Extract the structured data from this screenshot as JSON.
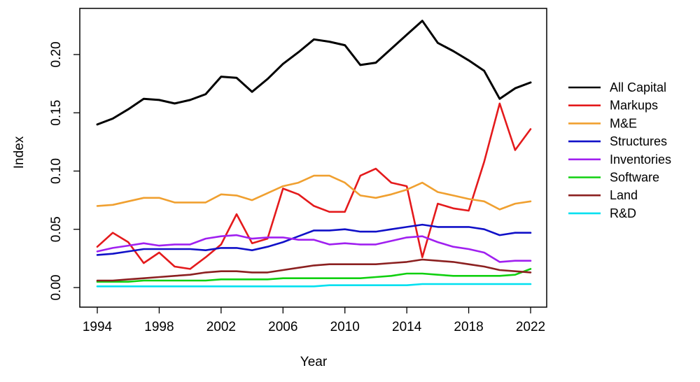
{
  "chart_data": {
    "type": "line",
    "xlabel": "Year",
    "ylabel": "Index",
    "xlim": [
      1994,
      2022
    ],
    "ylim": [
      0.0,
      0.23
    ],
    "x_ticks": [
      1994,
      1998,
      2002,
      2006,
      2010,
      2014,
      2018,
      2022
    ],
    "x_tick_labels": [
      "1994",
      "1998",
      "2002",
      "2006",
      "2010",
      "2014",
      "2018",
      "2022"
    ],
    "y_ticks": [
      0.0,
      0.05,
      0.1,
      0.15,
      0.2
    ],
    "y_tick_labels": [
      "0.00",
      "0.05",
      "0.10",
      "0.15",
      "0.20"
    ],
    "legend_position": "right",
    "grid": false,
    "x": [
      1994,
      1995,
      1996,
      1997,
      1998,
      1999,
      2000,
      2001,
      2002,
      2003,
      2004,
      2005,
      2006,
      2007,
      2008,
      2009,
      2010,
      2011,
      2012,
      2013,
      2014,
      2015,
      2016,
      2017,
      2018,
      2019,
      2020,
      2021,
      2022
    ],
    "series": [
      {
        "name": "All Capital",
        "color": "#000000",
        "values": [
          0.14,
          0.145,
          0.153,
          0.162,
          0.161,
          0.158,
          0.161,
          0.166,
          0.181,
          0.18,
          0.168,
          0.179,
          0.192,
          0.202,
          0.213,
          0.211,
          0.208,
          0.191,
          0.193,
          0.205,
          0.217,
          0.229,
          0.21,
          0.203,
          0.195,
          0.186,
          0.162,
          0.171,
          0.176
        ]
      },
      {
        "name": "Markups",
        "color": "#e41a1c",
        "values": [
          0.035,
          0.047,
          0.039,
          0.021,
          0.03,
          0.018,
          0.016,
          0.026,
          0.037,
          0.063,
          0.038,
          0.042,
          0.085,
          0.08,
          0.07,
          0.065,
          0.065,
          0.096,
          0.102,
          0.09,
          0.087,
          0.026,
          0.072,
          0.068,
          0.066,
          0.108,
          0.158,
          0.118,
          0.136
        ]
      },
      {
        "name": "M&E",
        "color": "#f0a030",
        "values": [
          0.07,
          0.071,
          0.074,
          0.077,
          0.077,
          0.073,
          0.073,
          0.073,
          0.08,
          0.079,
          0.075,
          0.081,
          0.087,
          0.09,
          0.096,
          0.096,
          0.09,
          0.079,
          0.077,
          0.08,
          0.084,
          0.09,
          0.082,
          0.079,
          0.076,
          0.074,
          0.067,
          0.072,
          0.074
        ]
      },
      {
        "name": "Structures",
        "color": "#1010c8",
        "values": [
          0.028,
          0.029,
          0.031,
          0.033,
          0.033,
          0.033,
          0.033,
          0.032,
          0.034,
          0.034,
          0.032,
          0.035,
          0.039,
          0.044,
          0.049,
          0.049,
          0.05,
          0.048,
          0.048,
          0.05,
          0.052,
          0.054,
          0.052,
          0.052,
          0.052,
          0.05,
          0.045,
          0.047,
          0.047
        ]
      },
      {
        "name": "Inventories",
        "color": "#a020f0",
        "values": [
          0.031,
          0.034,
          0.036,
          0.038,
          0.036,
          0.037,
          0.037,
          0.042,
          0.044,
          0.045,
          0.042,
          0.043,
          0.043,
          0.041,
          0.041,
          0.037,
          0.038,
          0.037,
          0.037,
          0.04,
          0.043,
          0.044,
          0.039,
          0.035,
          0.033,
          0.03,
          0.022,
          0.023,
          0.023
        ]
      },
      {
        "name": "Software",
        "color": "#10d010",
        "values": [
          0.005,
          0.005,
          0.005,
          0.006,
          0.006,
          0.006,
          0.006,
          0.006,
          0.007,
          0.007,
          0.007,
          0.007,
          0.008,
          0.008,
          0.008,
          0.008,
          0.008,
          0.008,
          0.009,
          0.01,
          0.012,
          0.012,
          0.011,
          0.01,
          0.01,
          0.01,
          0.01,
          0.011,
          0.016
        ]
      },
      {
        "name": "Land",
        "color": "#8b2020",
        "values": [
          0.006,
          0.006,
          0.007,
          0.008,
          0.009,
          0.01,
          0.011,
          0.013,
          0.014,
          0.014,
          0.013,
          0.013,
          0.015,
          0.017,
          0.019,
          0.02,
          0.02,
          0.02,
          0.02,
          0.021,
          0.022,
          0.024,
          0.023,
          0.022,
          0.02,
          0.018,
          0.015,
          0.014,
          0.013
        ]
      },
      {
        "name": "R&D",
        "color": "#00e0f0",
        "values": [
          0.001,
          0.001,
          0.001,
          0.001,
          0.001,
          0.001,
          0.001,
          0.001,
          0.001,
          0.001,
          0.001,
          0.001,
          0.001,
          0.001,
          0.001,
          0.002,
          0.002,
          0.002,
          0.002,
          0.002,
          0.002,
          0.003,
          0.003,
          0.003,
          0.003,
          0.003,
          0.003,
          0.003,
          0.003
        ]
      }
    ]
  }
}
